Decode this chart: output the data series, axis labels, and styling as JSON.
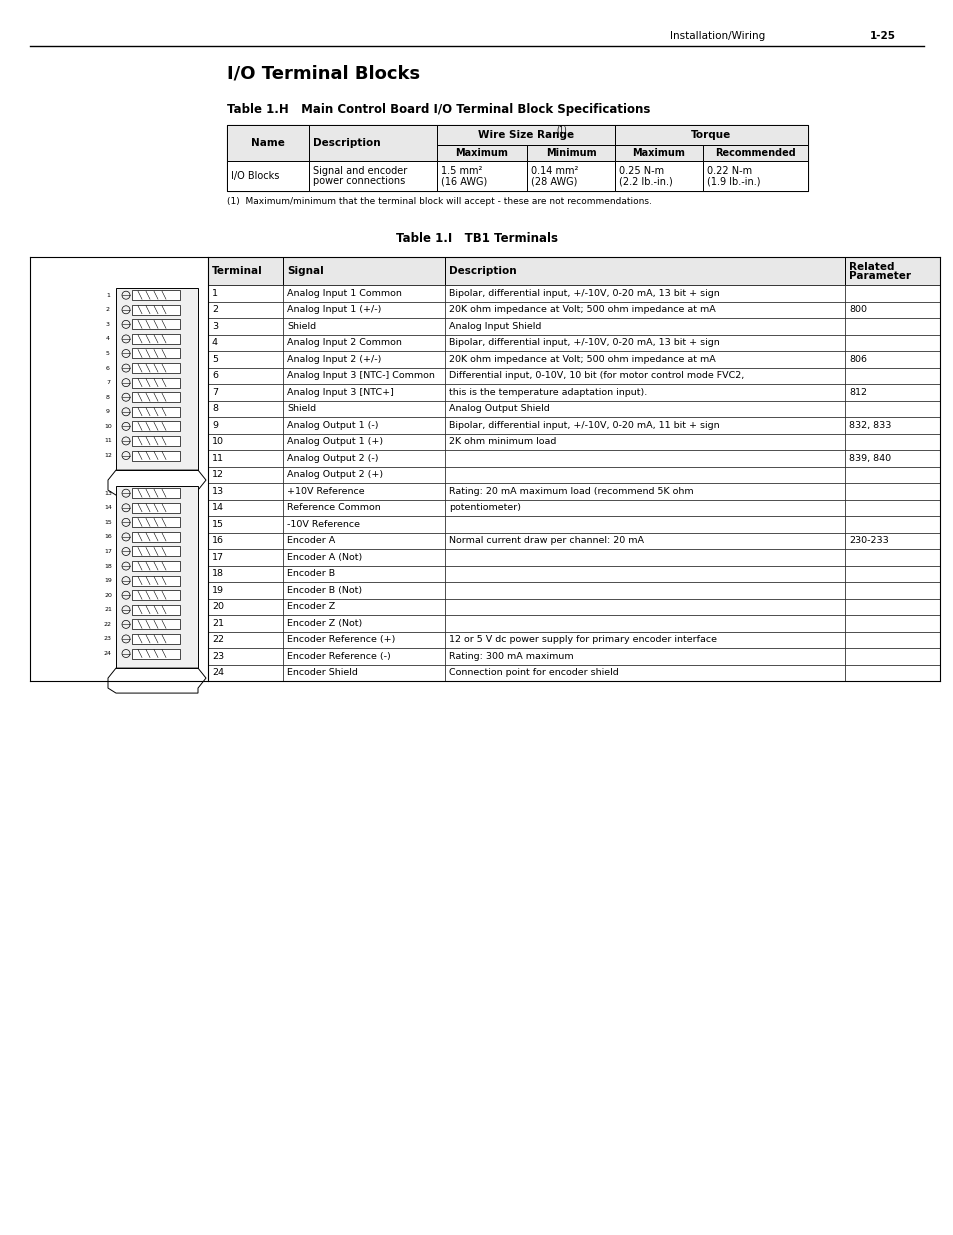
{
  "page_header_right": "Installation/Wiring",
  "page_number": "1-25",
  "main_title": "I/O Terminal Blocks",
  "table_h_title": "Table 1.H   Main Control Board I/O Terminal Block Specifications",
  "footnote": "(1)  Maximum/minimum that the terminal block will accept - these are not recommendations.",
  "table_i_title": "Table 1.I   TB1 Terminals",
  "table_i_rows": [
    [
      "1",
      "Analog Input 1 Common",
      "Bipolar, differential input, +/-10V, 0-20 mA, 13 bit + sign",
      ""
    ],
    [
      "2",
      "Analog Input 1 (+/-)",
      "20K ohm impedance at Volt; 500 ohm impedance at mA",
      "800"
    ],
    [
      "3",
      "Shield",
      "Analog Input Shield",
      ""
    ],
    [
      "4",
      "Analog Input 2 Common",
      "Bipolar, differential input, +/-10V, 0-20 mA, 13 bit + sign",
      ""
    ],
    [
      "5",
      "Analog Input 2 (+/-)",
      "20K ohm impedance at Volt; 500 ohm impedance at mA",
      "806"
    ],
    [
      "6",
      "Analog Input 3 [NTC-] Common",
      "Differential input, 0-10V, 10 bit (for motor control mode FVC2,",
      ""
    ],
    [
      "7",
      "Analog Input 3 [NTC+]",
      "this is the temperature adaptation input).",
      "812"
    ],
    [
      "8",
      "Shield",
      "Analog Output Shield",
      ""
    ],
    [
      "9",
      "Analog Output 1 (-)",
      "Bipolar, differential input, +/-10V, 0-20 mA, 11 bit + sign",
      "832, 833"
    ],
    [
      "10",
      "Analog Output 1 (+)",
      "2K ohm minimum load",
      ""
    ],
    [
      "11",
      "Analog Output 2 (-)",
      "",
      "839, 840"
    ],
    [
      "12",
      "Analog Output 2 (+)",
      "",
      ""
    ],
    [
      "13",
      "+10V Reference",
      "Rating: 20 mA maximum load (recommend 5K ohm",
      ""
    ],
    [
      "14",
      "Reference Common",
      "potentiometer)",
      ""
    ],
    [
      "15",
      "-10V Reference",
      "",
      ""
    ],
    [
      "16",
      "Encoder A",
      "Normal current draw per channel: 20 mA",
      "230-233"
    ],
    [
      "17",
      "Encoder A (Not)",
      "",
      ""
    ],
    [
      "18",
      "Encoder B",
      "",
      ""
    ],
    [
      "19",
      "Encoder B (Not)",
      "",
      ""
    ],
    [
      "20",
      "Encoder Z",
      "",
      ""
    ],
    [
      "21",
      "Encoder Z (Not)",
      "",
      ""
    ],
    [
      "22",
      "Encoder Reference (+)",
      "12 or 5 V dc power supply for primary encoder interface",
      ""
    ],
    [
      "23",
      "Encoder Reference (-)",
      "Rating: 300 mA maximum",
      ""
    ],
    [
      "24",
      "Encoder Shield",
      "Connection point for encoder shield",
      ""
    ]
  ],
  "bg_color": "#ffffff"
}
